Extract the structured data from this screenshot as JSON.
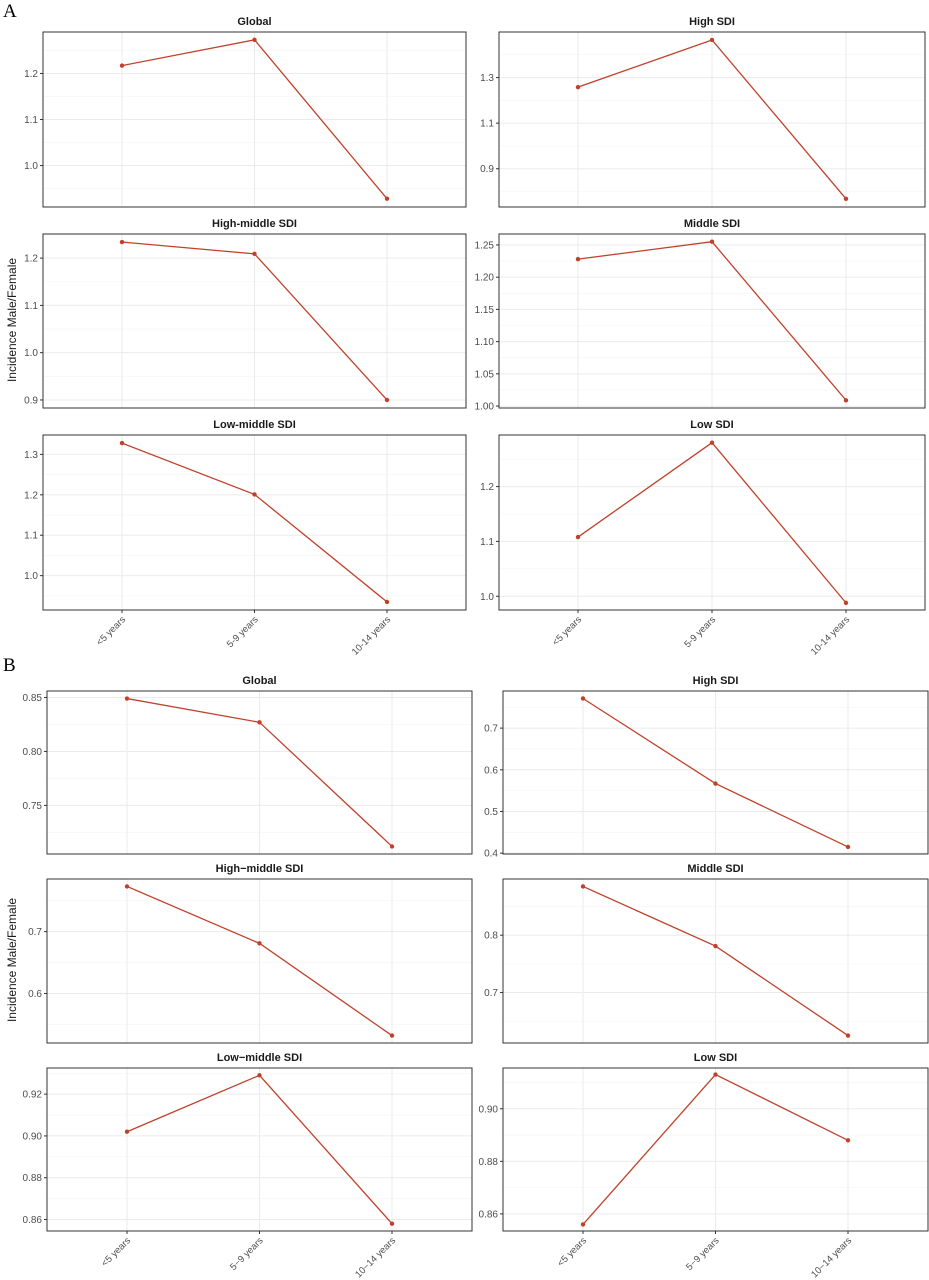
{
  "series_color": "#c0412b",
  "chart_data": [
    {
      "panel_label": "A",
      "type": "line",
      "ylabel": "Incidence Male/Female",
      "x": [
        "<5 years",
        "5-9 years",
        "10-14 years"
      ],
      "facets": [
        {
          "title": "Global",
          "values": [
            1.217,
            1.273,
            0.928
          ],
          "yticks": [
            1.0,
            1.1,
            1.2
          ],
          "ylim": [
            0.91,
            1.29
          ],
          "tick_decimals": 1
        },
        {
          "title": "High SDI",
          "values": [
            1.258,
            1.465,
            0.768
          ],
          "yticks": [
            0.9,
            1.1,
            1.3
          ],
          "ylim": [
            0.732,
            1.5
          ],
          "tick_decimals": 1
        },
        {
          "title": "High-middle SDI",
          "values": [
            1.234,
            1.209,
            0.9
          ],
          "yticks": [
            0.9,
            1.0,
            1.1,
            1.2
          ],
          "ylim": [
            0.883,
            1.251
          ],
          "tick_decimals": 1
        },
        {
          "title": "Middle SDI",
          "values": [
            1.228,
            1.255,
            1.009
          ],
          "yticks": [
            1.0,
            1.05,
            1.1,
            1.15,
            1.2,
            1.25
          ],
          "ylim": [
            0.997,
            1.267
          ],
          "tick_decimals": 2
        },
        {
          "title": "Low-middle SDI",
          "values": [
            1.328,
            1.201,
            0.935
          ],
          "yticks": [
            1.0,
            1.1,
            1.2,
            1.3
          ],
          "ylim": [
            0.915,
            1.348
          ],
          "tick_decimals": 1
        },
        {
          "title": "Low SDI",
          "values": [
            1.108,
            1.28,
            0.988
          ],
          "yticks": [
            1.0,
            1.1,
            1.2
          ],
          "ylim": [
            0.975,
            1.294
          ],
          "tick_decimals": 1
        }
      ]
    },
    {
      "panel_label": "B",
      "type": "line",
      "ylabel": "Incidence Male/Female",
      "x": [
        "<5 years",
        "5−9 years",
        "10−14 years"
      ],
      "facets": [
        {
          "title": "Global",
          "values": [
            0.849,
            0.827,
            0.712
          ],
          "yticks": [
            0.75,
            0.8,
            0.85
          ],
          "ylim": [
            0.705,
            0.856
          ],
          "tick_decimals": 2
        },
        {
          "title": "High SDI",
          "values": [
            0.771,
            0.567,
            0.415
          ],
          "yticks": [
            0.4,
            0.5,
            0.6,
            0.7
          ],
          "ylim": [
            0.398,
            0.789
          ],
          "tick_decimals": 1
        },
        {
          "title": "High−middle SDI",
          "values": [
            0.773,
            0.681,
            0.532
          ],
          "yticks": [
            0.6,
            0.7
          ],
          "ylim": [
            0.52,
            0.785
          ],
          "tick_decimals": 1
        },
        {
          "title": "Middle SDI",
          "values": [
            0.885,
            0.781,
            0.625
          ],
          "yticks": [
            0.7,
            0.8
          ],
          "ylim": [
            0.612,
            0.898
          ],
          "tick_decimals": 1
        },
        {
          "title": "Low−middle SDI",
          "values": [
            0.902,
            0.929,
            0.858
          ],
          "yticks": [
            0.86,
            0.88,
            0.9,
            0.92
          ],
          "ylim": [
            0.8545,
            0.9325
          ],
          "tick_decimals": 2
        },
        {
          "title": "Low SDI",
          "values": [
            0.856,
            0.913,
            0.888
          ],
          "yticks": [
            0.86,
            0.88,
            0.9
          ],
          "ylim": [
            0.8535,
            0.9155
          ],
          "tick_decimals": 2
        }
      ]
    }
  ]
}
